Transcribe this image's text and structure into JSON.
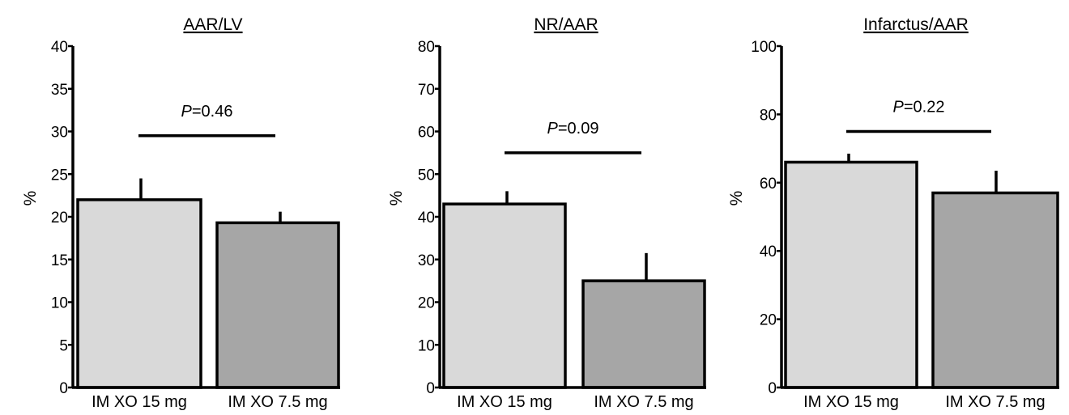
{
  "colors": {
    "bar_light": "#d9d9d9",
    "bar_dark": "#a6a6a6",
    "stroke": "#000000",
    "background": "#ffffff"
  },
  "chart_data": [
    {
      "type": "bar",
      "title": "AAR/LV",
      "ylabel": "%",
      "categories": [
        "IM XO 15 mg",
        "IM XO 7.5 mg"
      ],
      "values": [
        22,
        19.3
      ],
      "error_upper": [
        24.5,
        20.6
      ],
      "yticks": [
        "0",
        "5",
        "10",
        "15",
        "20",
        "25",
        "30",
        "35",
        "40"
      ],
      "ylim": [
        0,
        40
      ],
      "p_label": "P",
      "p_value": "=0.46",
      "bracket_y": 29.5,
      "grid": false,
      "legend": "none"
    },
    {
      "type": "bar",
      "title": "NR/AAR",
      "ylabel": "%",
      "categories": [
        "IM XO 15 mg",
        "IM XO 7.5 mg"
      ],
      "values": [
        43,
        25
      ],
      "error_upper": [
        46,
        31.5
      ],
      "yticks": [
        "0",
        "10",
        "20",
        "30",
        "40",
        "50",
        "60",
        "70",
        "80"
      ],
      "ylim": [
        0,
        80
      ],
      "p_label": "P",
      "p_value": "=0.09",
      "bracket_y": 55,
      "grid": false,
      "legend": "none"
    },
    {
      "type": "bar",
      "title": "Infarctus/AAR",
      "ylabel": "%",
      "categories": [
        "IM XO 15 mg",
        "IM XO 7.5 mg"
      ],
      "values": [
        66,
        57
      ],
      "error_upper": [
        68.5,
        63.5
      ],
      "yticks": [
        "0",
        "20",
        "40",
        "60",
        "80",
        "100"
      ],
      "ylim": [
        0,
        100
      ],
      "p_label": "P",
      "p_value": "=0.22",
      "bracket_y": 75,
      "grid": false,
      "legend": "none"
    }
  ]
}
